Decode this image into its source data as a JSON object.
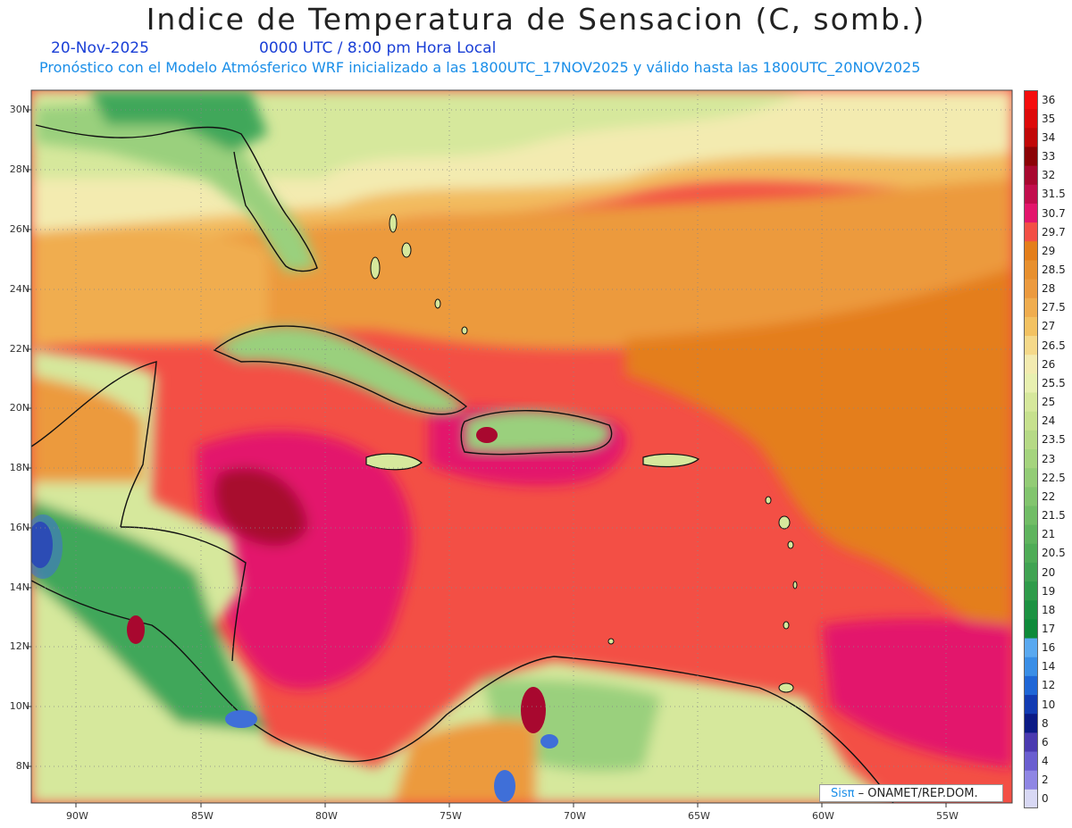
{
  "header": {
    "title": "Indice de Temperatura de Sensacion (C, somb.)",
    "date": "20-Nov-2025",
    "time": "0000 UTC / 8:00 pm Hora Local",
    "model_info": "Pronóstico con el Modelo Atmósferico WRF inicializado a las 1800UTC_17NOV2025 y válido hasta las  1800UTC_20NOV2025"
  },
  "map": {
    "latitudes": [
      "30N",
      "28N",
      "26N",
      "24N",
      "22N",
      "20N",
      "18N",
      "16N",
      "14N",
      "12N",
      "10N",
      "8N"
    ],
    "longitudes": [
      "90W",
      "85W",
      "80W",
      "75W",
      "70W",
      "65W",
      "60W",
      "55W"
    ],
    "lat_range": [
      7,
      31
    ],
    "lon_range": [
      -92,
      -52
    ],
    "colors": {
      "sea_hot": "#f34f45",
      "sea_very_hot": "#e3166c",
      "hottest": "#a8082f",
      "warm_orange": "#e47e1a",
      "orange": "#ec9a3e",
      "light_orange": "#f2bb5e",
      "cream": "#f3ebb0",
      "light_green": "#d6e89c",
      "green": "#9ad07d",
      "dark_green": "#3fa75a",
      "blue": "#3f6fd8",
      "navy": "#14228a",
      "coast": "#111111"
    }
  },
  "colorbar": {
    "levels": [
      "36",
      "35",
      "34",
      "33",
      "32",
      "31.5",
      "30.7",
      "29.7",
      "29",
      "28.5",
      "28",
      "27.5",
      "27",
      "26.5",
      "26",
      "25.5",
      "25",
      "24",
      "23.5",
      "23",
      "22.5",
      "22",
      "21.5",
      "21",
      "20.5",
      "20",
      "19",
      "18",
      "17",
      "16",
      "14",
      "12",
      "10",
      "8",
      "6",
      "4",
      "2",
      "0"
    ],
    "colors": [
      "#f50d0d",
      "#dd0a0a",
      "#c10808",
      "#8b0306",
      "#a8082f",
      "#c20e4d",
      "#e3166c",
      "#f34f45",
      "#e47e1a",
      "#e8902e",
      "#ec9a3e",
      "#f0ad4f",
      "#f3c262",
      "#f5d98a",
      "#f3ebb0",
      "#e8f0b0",
      "#d6e89c",
      "#c7e18e",
      "#b6da86",
      "#a5d47e",
      "#93cc76",
      "#82c56e",
      "#71bd66",
      "#5fb45e",
      "#4fac57",
      "#40a352",
      "#2f9b4a",
      "#1c9242",
      "#0e8a3a",
      "#5aa9f0",
      "#3a8ee6",
      "#1f66d6",
      "#123bb2",
      "#0b1a85",
      "#4a3ab0",
      "#6a5ed0",
      "#8f86e4",
      "#d8d8f4"
    ]
  },
  "credit": {
    "sis": "Sisπ",
    "org": "– ONAMET/REP.DOM."
  }
}
